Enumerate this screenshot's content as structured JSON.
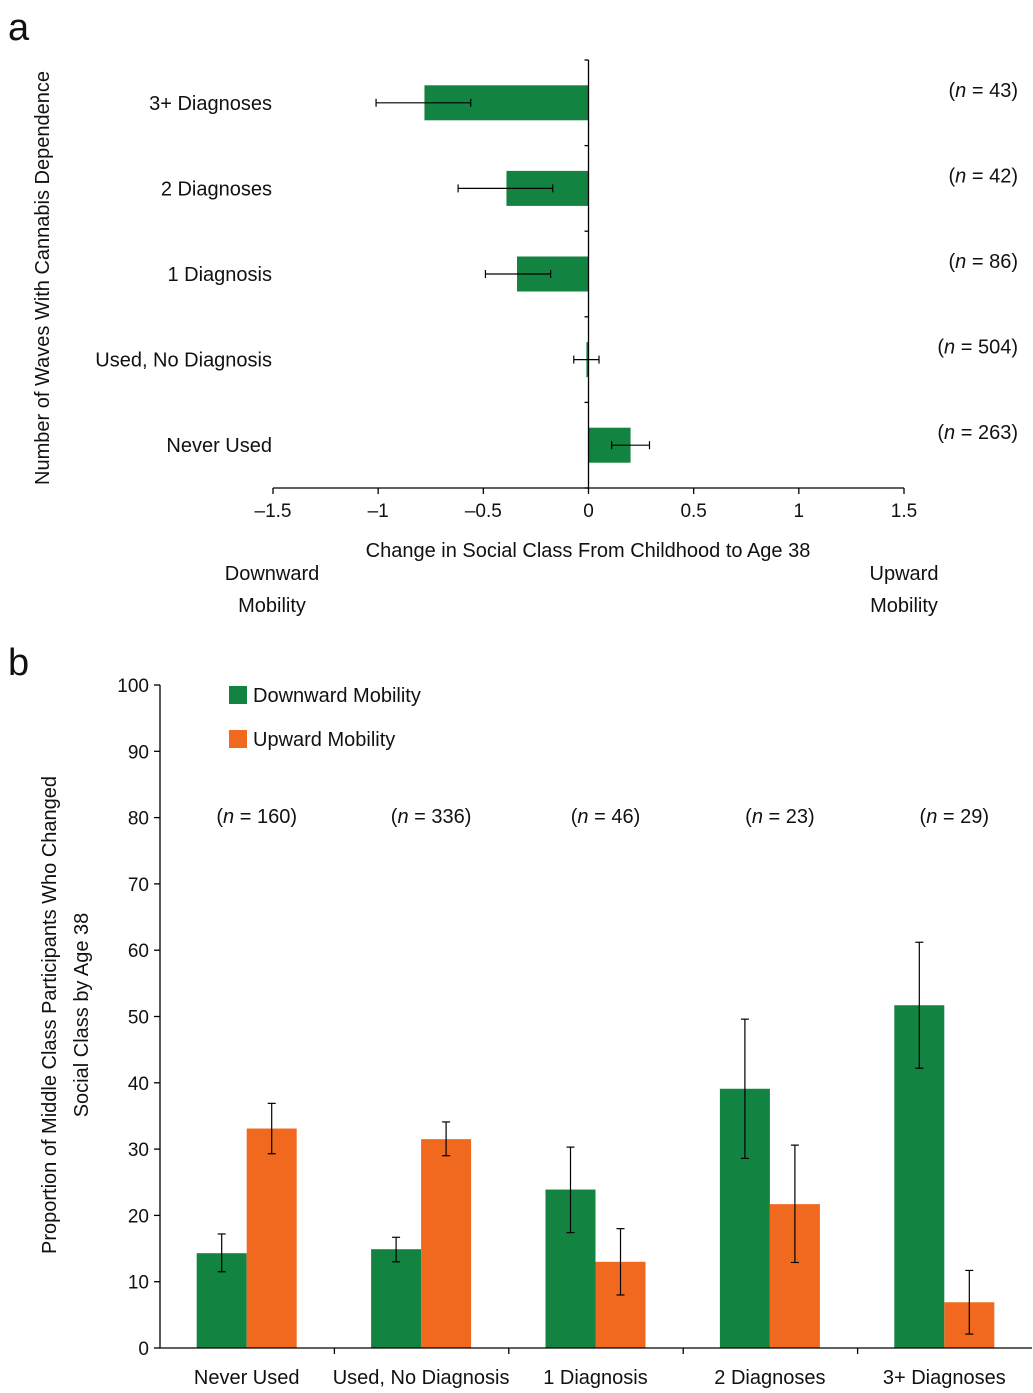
{
  "colors": {
    "downward": "#128341",
    "upward": "#F0691F"
  },
  "panels": {
    "a_letter": "a",
    "b_letter": "b"
  },
  "chart_data": [
    {
      "type": "bar",
      "orientation": "horizontal",
      "panel": "a",
      "categories": [
        "3+ Diagnoses",
        "2  Diagnoses",
        "1  Diagnosis",
        "Used, No Diagnosis",
        "Never Used"
      ],
      "values": [
        -0.78,
        -0.39,
        -0.34,
        -0.01,
        0.2
      ],
      "error_low": [
        -1.01,
        -0.62,
        -0.49,
        -0.07,
        0.11
      ],
      "error_high": [
        -0.56,
        -0.17,
        -0.18,
        0.05,
        0.29
      ],
      "n_labels": [
        "(n = 43)",
        "(n = 42)",
        "(n = 86)",
        "(n = 504)",
        "(n = 263)"
      ],
      "n_prefix": "(",
      "n_italic": "n",
      "n_mid": " = ",
      "n_values": [
        "43",
        "42",
        "86",
        "504",
        "263"
      ],
      "n_suffix": ")",
      "xlabel": "Change in Social Class From Childhood to Age 38",
      "ylabel": "Number of Waves With Cannabis Dependence",
      "xlim": [
        -1.5,
        1.5
      ],
      "xticks": [
        "–1.5",
        "–1",
        "–0.5",
        "0",
        "0.5",
        "1",
        "1.5"
      ],
      "left_note": [
        "Downward",
        "Mobility"
      ],
      "right_note": [
        "Upward",
        "Mobility"
      ]
    },
    {
      "type": "bar",
      "panel": "b",
      "categories": [
        "Never Used",
        "Used, No Diagnosis",
        "1 Diagnosis",
        "2 Diagnoses",
        "3+ Diagnoses"
      ],
      "series": [
        {
          "name": "Downward Mobility",
          "values": [
            14.3,
            14.9,
            23.9,
            39.1,
            51.7
          ],
          "error_low": [
            11.5,
            13.0,
            17.4,
            28.6,
            42.2
          ],
          "error_high": [
            17.2,
            16.7,
            30.3,
            49.6,
            61.2
          ]
        },
        {
          "name": "Upward Mobility",
          "values": [
            33.1,
            31.5,
            13.0,
            21.7,
            6.9
          ],
          "error_low": [
            29.3,
            29.0,
            8.0,
            12.9,
            2.1
          ],
          "error_high": [
            36.9,
            34.1,
            18.0,
            30.6,
            11.7
          ]
        }
      ],
      "n_labels": [
        "(n = 160)",
        "(n = 336)",
        "(n = 46)",
        "(n = 23)",
        "(n = 29)"
      ],
      "n_values": [
        "160",
        "336",
        "46",
        "23",
        "29"
      ],
      "ylabel_lines": [
        "Proportion of Middle Class Participants Who Changed",
        "Social Class by Age 38"
      ],
      "ylim": [
        0,
        100
      ],
      "yticks": [
        "0",
        "10",
        "20",
        "30",
        "40",
        "50",
        "60",
        "70",
        "80",
        "90",
        "100"
      ],
      "legend_position": "top-left"
    }
  ]
}
